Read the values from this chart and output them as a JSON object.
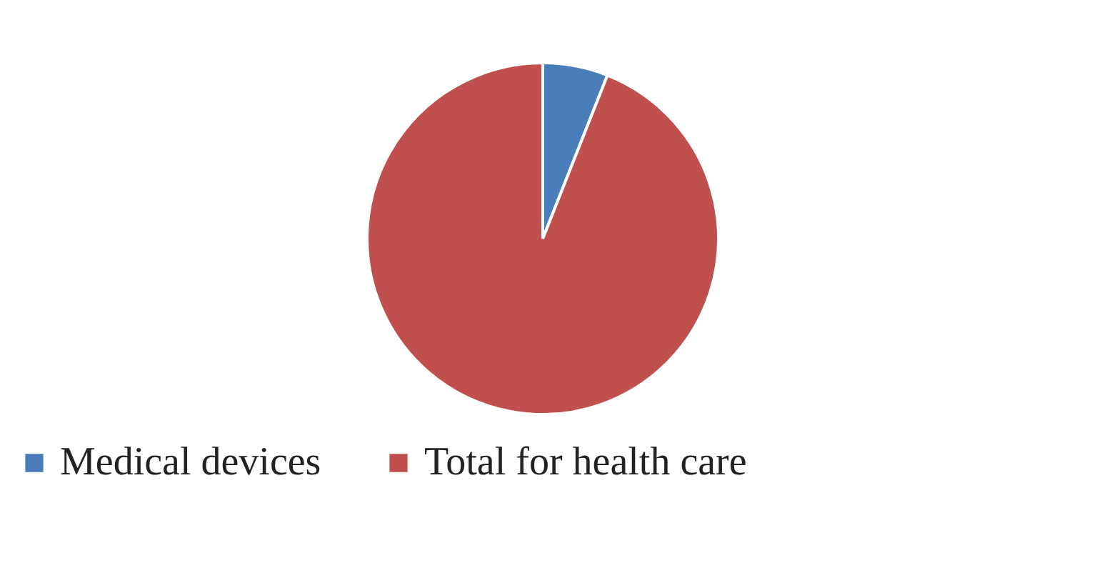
{
  "chart_data": {
    "type": "pie",
    "categories": [
      "Medical devices",
      "Total for health care"
    ],
    "values": [
      6,
      94
    ],
    "colors": [
      "#4a7ebb",
      "#c0504d"
    ],
    "legend": "bottom"
  }
}
